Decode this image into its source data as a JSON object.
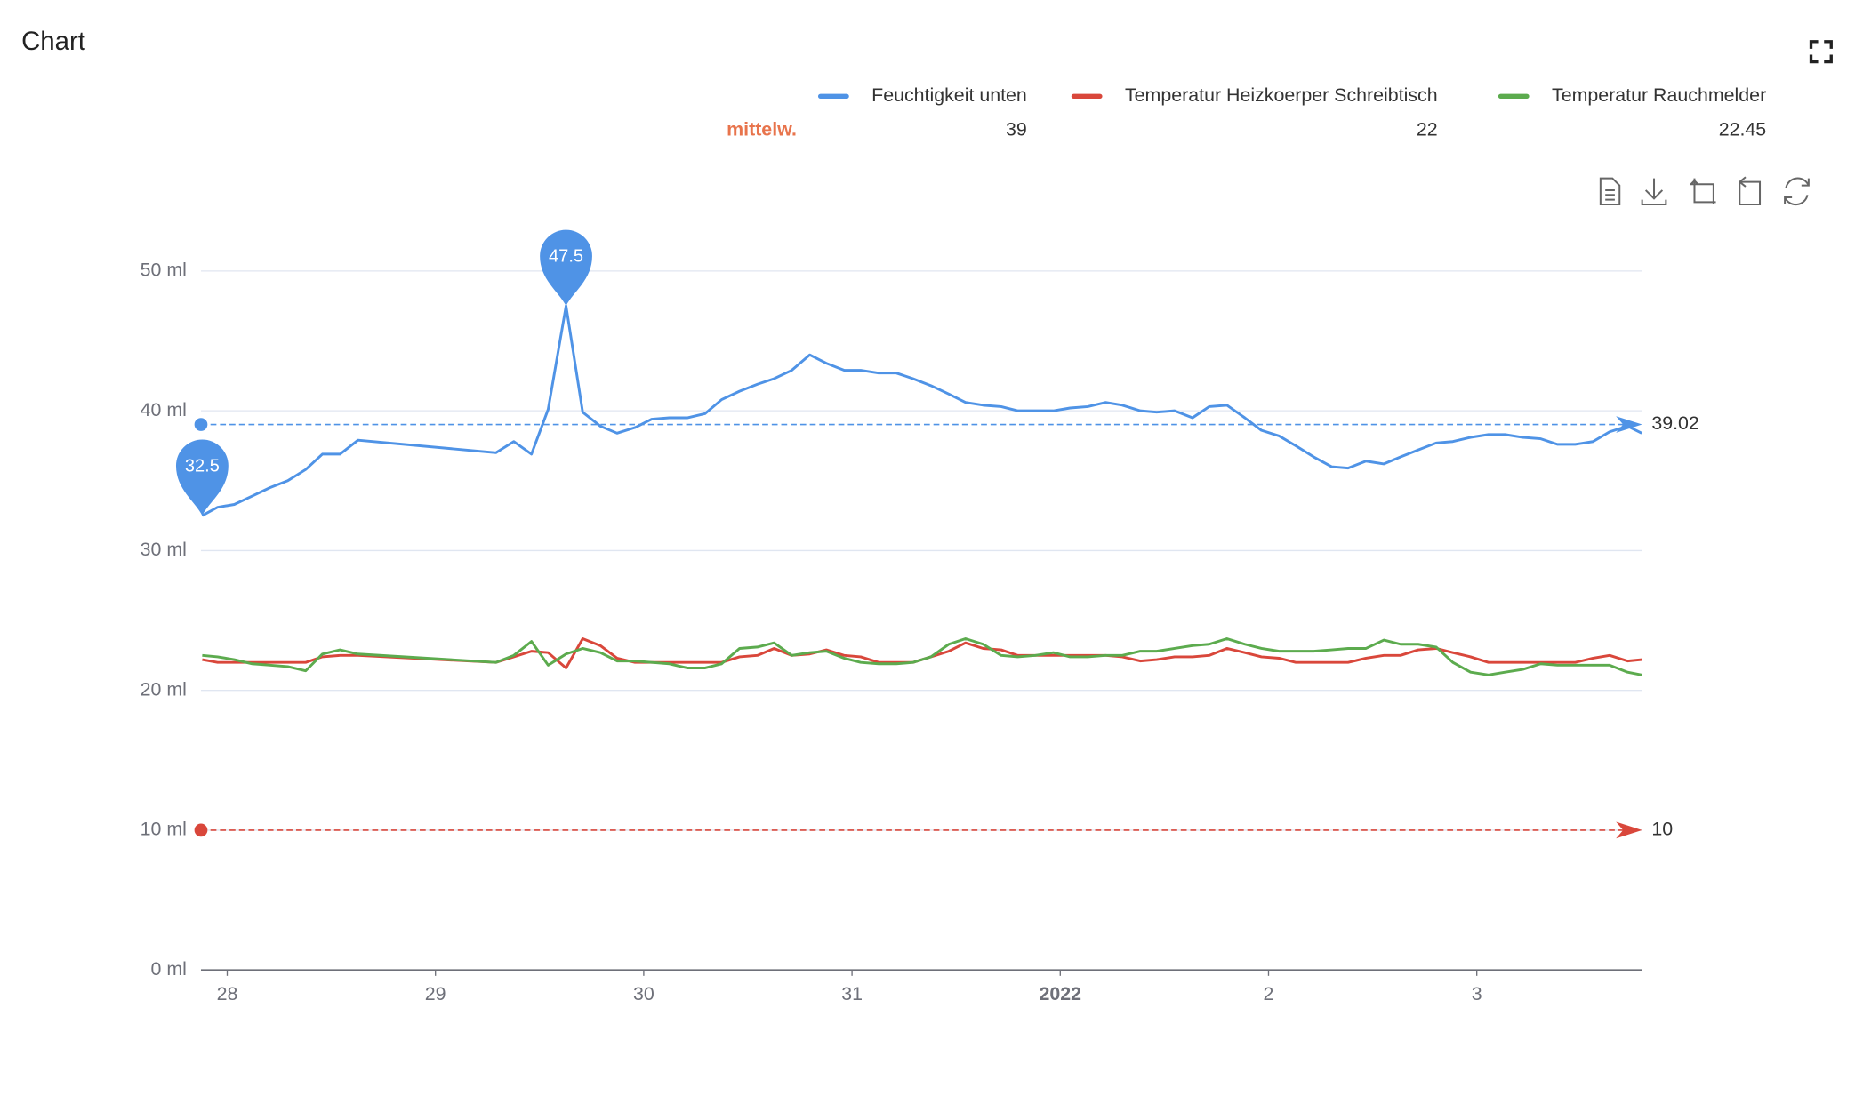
{
  "chart_data": {
    "type": "line",
    "title": "Chart",
    "mean_label": "mittelw.",
    "x": [
      27.88,
      27.954,
      28.034,
      28.12,
      28.205,
      28.291,
      28.377,
      28.457,
      28.542,
      28.628,
      29.29,
      29.376,
      29.461,
      29.541,
      29.627,
      29.707,
      29.792,
      29.872,
      29.958,
      30.038,
      30.123,
      30.209,
      30.295,
      30.374,
      30.46,
      30.546,
      30.626,
      30.711,
      30.797,
      30.877,
      30.962,
      31.042,
      31.128,
      31.213,
      31.293,
      31.379,
      31.465,
      31.545,
      31.63,
      31.716,
      31.796,
      31.881,
      31.967,
      32.047,
      32.132,
      32.218,
      32.298,
      32.384,
      32.463,
      32.549,
      32.635,
      32.715,
      32.8,
      32.886,
      32.966,
      33.051,
      33.131,
      33.217,
      33.303,
      33.382,
      33.468,
      33.554,
      33.634,
      33.719,
      33.805,
      33.885,
      33.97,
      34.056,
      34.136,
      34.221,
      34.307,
      34.387,
      34.473,
      34.558,
      34.638,
      34.724,
      34.792
    ],
    "series": [
      {
        "name": "Feuchtigkeit unten",
        "color": "#4f93e6",
        "mean": 39,
        "mark_line": 39.02,
        "mark_points": [
          "min",
          "max"
        ],
        "values": [
          32.5,
          33.1,
          33.3,
          33.9,
          34.5,
          35.0,
          35.8,
          36.9,
          36.9,
          37.9,
          37.0,
          37.8,
          36.9,
          40.1,
          47.5,
          39.9,
          38.9,
          38.4,
          38.8,
          39.4,
          39.5,
          39.5,
          39.8,
          40.8,
          41.4,
          41.9,
          42.3,
          42.9,
          44.0,
          43.4,
          42.9,
          42.9,
          42.7,
          42.7,
          42.3,
          41.8,
          41.2,
          40.6,
          40.4,
          40.3,
          40.0,
          40.0,
          40.0,
          40.2,
          40.3,
          40.6,
          40.4,
          40.0,
          39.9,
          40.0,
          39.5,
          40.3,
          40.4,
          39.5,
          38.6,
          38.2,
          37.5,
          36.7,
          36.0,
          35.9,
          36.4,
          36.2,
          36.7,
          37.2,
          37.7,
          37.8,
          38.1,
          38.3,
          38.3,
          38.1,
          38.0,
          37.6,
          37.6,
          37.8,
          38.5,
          38.9,
          38.4
        ]
      },
      {
        "name": "Temperatur Heizkoerper Schreibtisch",
        "color": "#d9473b",
        "mean": 22,
        "mark_line": 10,
        "values": [
          22.2,
          22.0,
          22.0,
          22.0,
          22.0,
          22.0,
          22.0,
          22.4,
          22.5,
          22.5,
          22.0,
          22.4,
          22.8,
          22.7,
          21.6,
          23.7,
          23.2,
          22.3,
          22.0,
          22.0,
          22.0,
          22.0,
          22.0,
          22.0,
          22.4,
          22.5,
          23.0,
          22.5,
          22.6,
          22.9,
          22.5,
          22.4,
          22.0,
          22.0,
          22.0,
          22.4,
          22.8,
          23.4,
          23.0,
          22.9,
          22.5,
          22.5,
          22.5,
          22.5,
          22.5,
          22.5,
          22.4,
          22.1,
          22.2,
          22.4,
          22.4,
          22.5,
          23.0,
          22.7,
          22.4,
          22.3,
          22.0,
          22.0,
          22.0,
          22.0,
          22.3,
          22.5,
          22.5,
          22.9,
          23.0,
          22.7,
          22.4,
          22.0,
          22.0,
          22.0,
          22.0,
          22.0,
          22.0,
          22.3,
          22.5,
          22.1,
          22.2
        ]
      },
      {
        "name": "Temperatur Rauchmelder",
        "color": "#5cab4e",
        "mean": 22.45,
        "values": [
          22.5,
          22.4,
          22.2,
          21.9,
          21.8,
          21.7,
          21.4,
          22.6,
          22.9,
          22.6,
          22.0,
          22.5,
          23.5,
          21.8,
          22.6,
          23.0,
          22.7,
          22.1,
          22.1,
          22.0,
          21.9,
          21.6,
          21.6,
          21.9,
          23.0,
          23.1,
          23.4,
          22.5,
          22.7,
          22.8,
          22.3,
          22.0,
          21.9,
          21.9,
          22.0,
          22.4,
          23.3,
          23.7,
          23.3,
          22.5,
          22.4,
          22.5,
          22.7,
          22.4,
          22.4,
          22.5,
          22.5,
          22.8,
          22.8,
          23.0,
          23.2,
          23.3,
          23.7,
          23.3,
          23.0,
          22.8,
          22.8,
          22.8,
          22.9,
          23.0,
          23.0,
          23.6,
          23.3,
          23.3,
          23.1,
          22.0,
          21.3,
          21.1,
          21.3,
          21.5,
          21.9,
          21.8,
          21.8,
          21.8,
          21.8,
          21.3,
          21.1
        ]
      }
    ],
    "xlim": [
      27.874,
      34.794
    ],
    "xticks": [
      28,
      29,
      30,
      31,
      {
        "value": 32,
        "label": "2022"
      },
      {
        "value": 33,
        "label": "2"
      },
      {
        "value": 34,
        "label": "3"
      }
    ],
    "ylim": [
      0,
      50
    ],
    "yticks": [
      {
        "value": 0,
        "label": "0 ml"
      },
      {
        "value": 10,
        "label": "10 ml"
      },
      {
        "value": 20,
        "label": "20 ml"
      },
      {
        "value": 30,
        "label": "30 ml"
      },
      {
        "value": 40,
        "label": "40 ml"
      },
      {
        "value": 50,
        "label": "50 ml"
      }
    ],
    "grid": true
  }
}
